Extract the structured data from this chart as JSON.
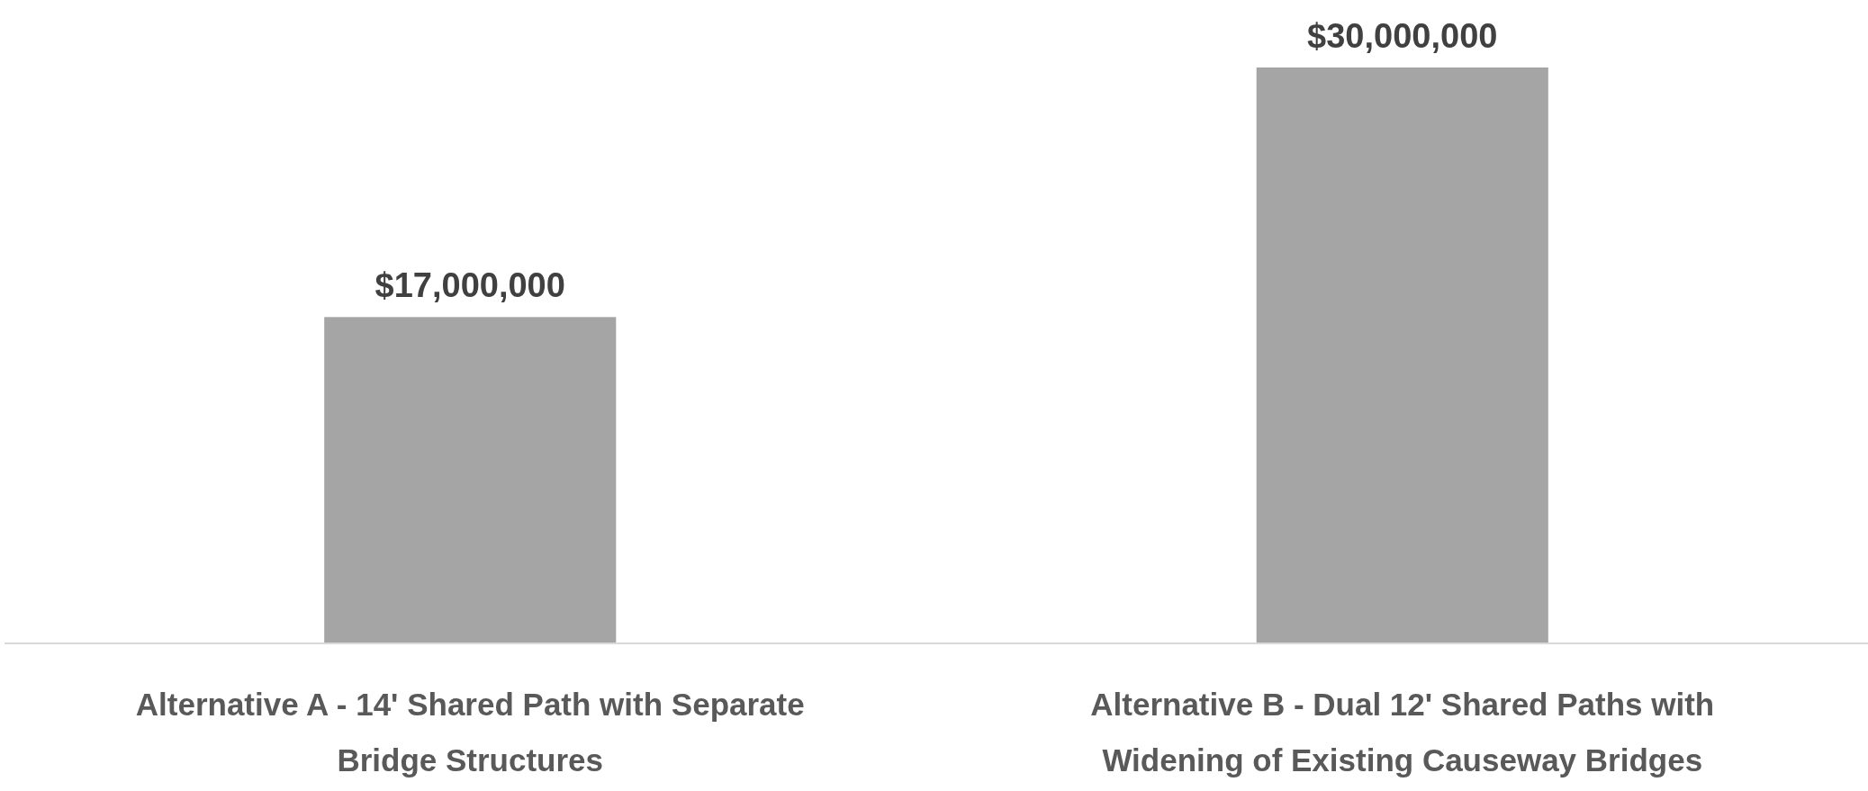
{
  "chart_data": {
    "type": "bar",
    "categories": [
      "Alternative A - 14' Shared Path with Separate Bridge Structures",
      "Alternative B - Dual 12' Shared Paths with Widening of Existing Causeway Bridges"
    ],
    "values": [
      17000000,
      30000000
    ],
    "color": "#a5a5a5",
    "value_labels": [
      "$17,000,000",
      "$30,000,000"
    ]
  }
}
